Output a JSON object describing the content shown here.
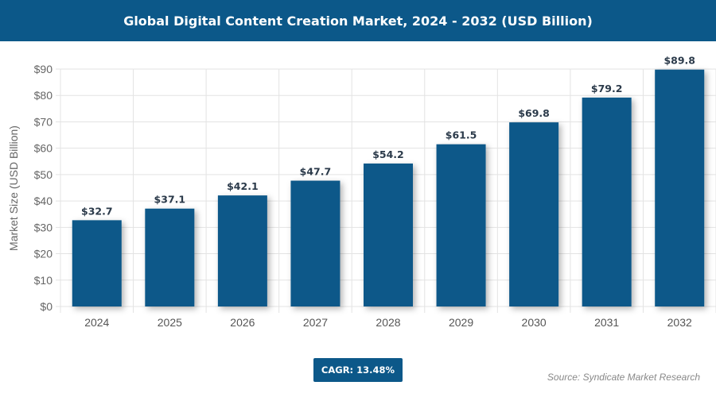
{
  "header": {
    "title": "Global Digital Content Creation Market, 2024 - 2032 (USD Billion)"
  },
  "chart_data": {
    "type": "bar",
    "title": "Global Digital Content Creation Market, 2024 - 2032 (USD Billion)",
    "categories": [
      "2024",
      "2025",
      "2026",
      "2027",
      "2028",
      "2029",
      "2030",
      "2031",
      "2032"
    ],
    "values": [
      32.7,
      37.1,
      42.1,
      47.7,
      54.2,
      61.5,
      69.8,
      79.2,
      89.8
    ],
    "data_labels": [
      "$32.7",
      "$37.1",
      "$42.1",
      "$47.7",
      "$54.2",
      "$61.5",
      "$69.8",
      "$79.2",
      "$89.8"
    ],
    "xlabel": "",
    "ylabel": "Market Size (USD Billion)",
    "ylim": [
      0,
      90
    ],
    "yticks": [
      "$0",
      "$10",
      "$20",
      "$30",
      "$40",
      "$50",
      "$60",
      "$70",
      "$80",
      "$90"
    ],
    "grid": true,
    "bar_color": "#0c5889"
  },
  "footer": {
    "cagr": "CAGR: 13.48%",
    "source": "Source: Syndicate Market Research"
  }
}
